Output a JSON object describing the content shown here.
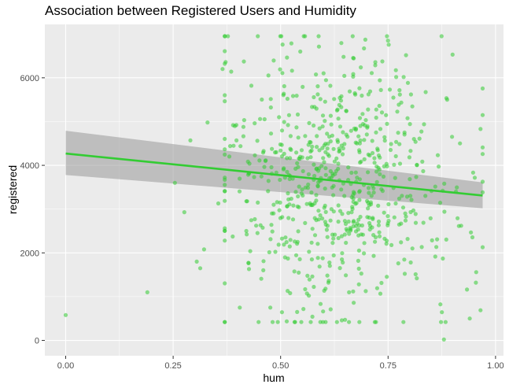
{
  "chart_data": {
    "type": "scatter",
    "title": "Association between Registered Users and Humidity",
    "xlabel": "hum",
    "ylabel": "registered",
    "xlim": [
      -0.0485,
      1.0185
    ],
    "ylim": [
      -350,
      7220
    ],
    "x_ticks": [
      {
        "value": 0.0,
        "label": "0.00"
      },
      {
        "value": 0.25,
        "label": "0.25"
      },
      {
        "value": 0.5,
        "label": "0.50"
      },
      {
        "value": 0.75,
        "label": "0.75"
      },
      {
        "value": 1.0,
        "label": "1.00"
      }
    ],
    "y_ticks": [
      {
        "value": 0,
        "label": "0"
      },
      {
        "value": 2000,
        "label": "2000"
      },
      {
        "value": 4000,
        "label": "4000"
      },
      {
        "value": 6000,
        "label": "6000"
      }
    ],
    "grid": true,
    "point_color": "#33cc33",
    "panel_color": "#ebebeb",
    "band_color": "#999999",
    "outlier_points": [
      {
        "x": 0.0,
        "y": 580
      },
      {
        "x": 0.19,
        "y": 1100
      },
      {
        "x": 0.254,
        "y": 3600
      },
      {
        "x": 0.276,
        "y": 2930
      },
      {
        "x": 0.29,
        "y": 4570
      },
      {
        "x": 0.305,
        "y": 1800
      },
      {
        "x": 0.313,
        "y": 1650
      },
      {
        "x": 0.322,
        "y": 2080
      },
      {
        "x": 0.33,
        "y": 4980
      },
      {
        "x": 0.355,
        "y": 3130
      },
      {
        "x": 0.365,
        "y": 6200
      },
      {
        "x": 0.372,
        "y": 6360
      },
      {
        "x": 0.88,
        "y": 20
      },
      {
        "x": 0.94,
        "y": 500
      },
      {
        "x": 0.955,
        "y": 1560
      },
      {
        "x": 0.965,
        "y": 690
      },
      {
        "x": 0.97,
        "y": 2130
      },
      {
        "x": 0.965,
        "y": 4830
      },
      {
        "x": 0.92,
        "y": 2620
      },
      {
        "x": 0.908,
        "y": 3400
      }
    ],
    "random_points": {
      "count": 700,
      "seed": 7,
      "hum_mean": 0.63,
      "hum_sd": 0.14,
      "hum_range": [
        0.37,
        0.97
      ],
      "registered_mean": 3656,
      "registered_sd": 1560,
      "registered_range": [
        420,
        6950
      ]
    },
    "trend_line": {
      "method": "lm",
      "x": [
        0.0,
        0.97
      ],
      "y": [
        4270,
        3310
      ],
      "ci_lower": [
        3780,
        3020
      ],
      "ci_upper": [
        4790,
        3610
      ],
      "color": "#33cc33"
    }
  }
}
